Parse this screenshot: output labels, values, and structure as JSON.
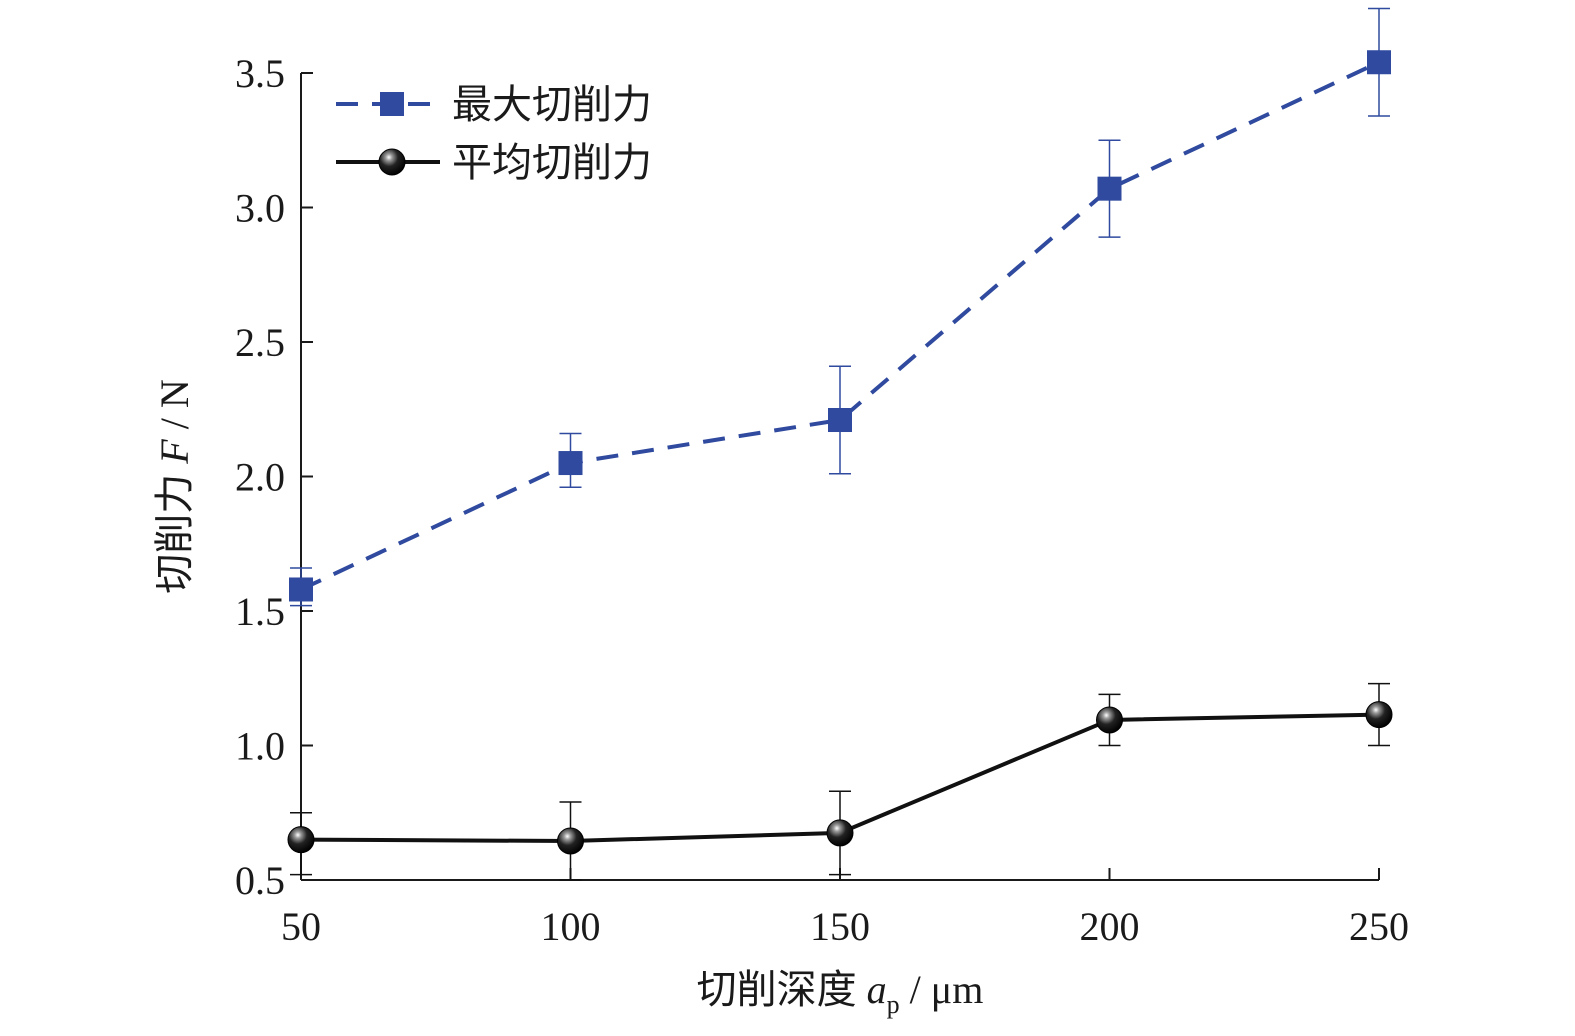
{
  "chart_data": {
    "type": "line",
    "title": "",
    "xlabel": "切削深度 a_p / μm",
    "xlabel_parts": {
      "prefix": "切削深度 ",
      "var": "a",
      "sub": "p",
      "suffix": " / μm"
    },
    "ylabel": "切削力 F / N",
    "ylabel_parts": {
      "prefix": "切削力 ",
      "var": "F",
      "suffix": " / N"
    },
    "x": [
      50,
      100,
      150,
      200,
      250
    ],
    "xlim": [
      50,
      250
    ],
    "ylim": [
      0.5,
      3.5
    ],
    "xticks": [
      "50",
      "100",
      "150",
      "200",
      "250"
    ],
    "yticks": [
      "0.5",
      "1.0",
      "1.5",
      "2.0",
      "2.5",
      "3.0",
      "3.5"
    ],
    "grid": false,
    "legend_position": "top-left",
    "series": [
      {
        "name": "最大切削力",
        "values": [
          1.58,
          2.05,
          2.21,
          3.07,
          3.54
        ],
        "err_low": [
          1.52,
          1.96,
          2.01,
          2.89,
          3.34
        ],
        "err_high": [
          1.66,
          2.16,
          2.41,
          3.25,
          3.74
        ],
        "color": "#2f4a9e",
        "line_style": "dashed",
        "marker": "square"
      },
      {
        "name": "平均切削力",
        "values": [
          0.65,
          0.645,
          0.675,
          1.095,
          1.115
        ],
        "err_low": [
          0.52,
          0.5,
          0.52,
          1.0,
          1.0
        ],
        "err_high": [
          0.75,
          0.79,
          0.83,
          1.19,
          1.23
        ],
        "color": "#111111",
        "line_style": "solid",
        "marker": "sphere"
      }
    ]
  }
}
